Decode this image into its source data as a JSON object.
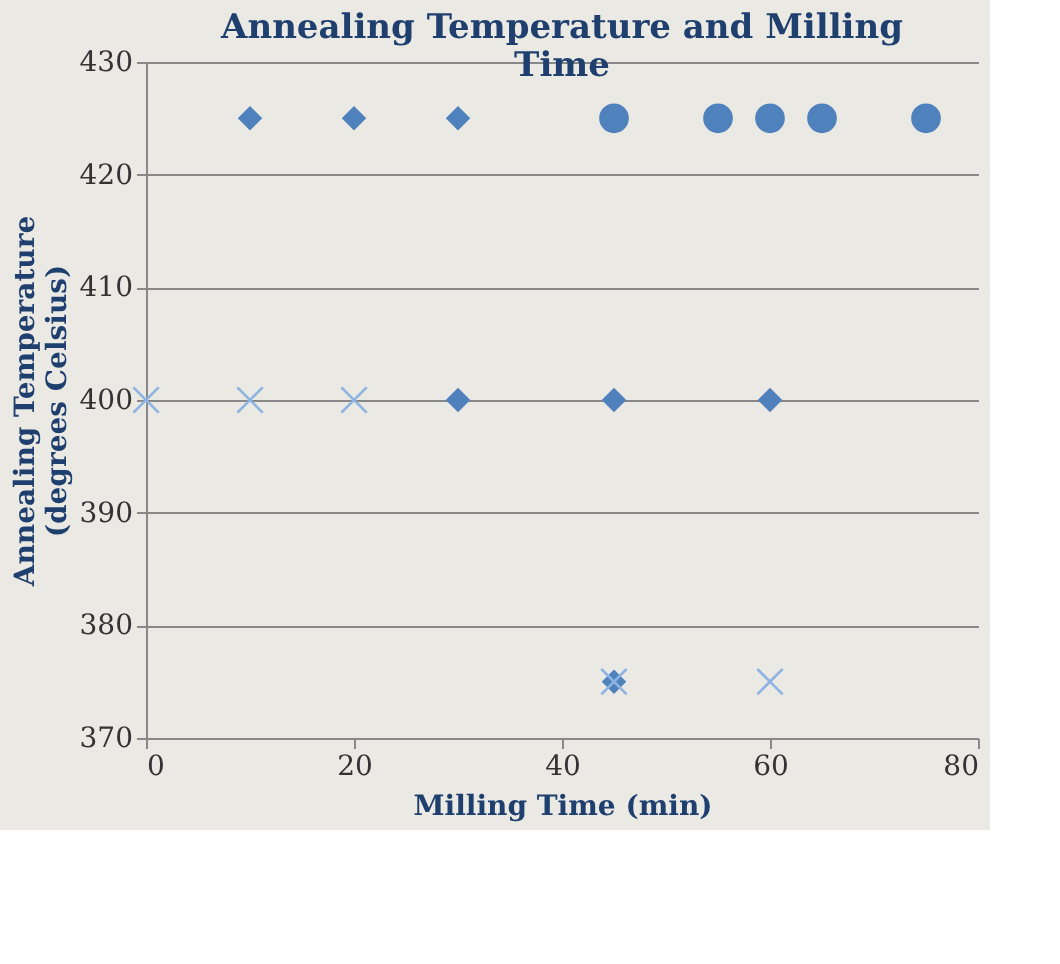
{
  "chart_data": {
    "type": "scatter",
    "title": "Annealing Temperature and Milling Time",
    "xlabel": "Milling Time (min)",
    "ylabel": "Annealing Temperature (degrees Celsius)",
    "xlim": [
      0,
      80
    ],
    "xticks": [
      0,
      20,
      40,
      60,
      80
    ],
    "ylim": [
      370,
      430
    ],
    "yticks": [
      370,
      380,
      390,
      400,
      410,
      420,
      430
    ],
    "grid": "y",
    "series": [
      {
        "color": "#4f81bd",
        "marker": "diamond",
        "x": [
          10,
          20,
          30,
          30,
          45,
          60,
          45
        ],
        "values": [
          425,
          425,
          425,
          400,
          400,
          400,
          375
        ]
      },
      {
        "color": "#4f81bd",
        "marker": "circle",
        "x": [
          45,
          55,
          60,
          65,
          75
        ],
        "values": [
          425,
          425,
          425,
          425,
          425
        ]
      },
      {
        "color": "#8db3e2",
        "marker": "cross",
        "x": [
          0,
          10,
          20,
          45,
          60
        ],
        "values": [
          400,
          400,
          400,
          375,
          375
        ]
      }
    ]
  }
}
